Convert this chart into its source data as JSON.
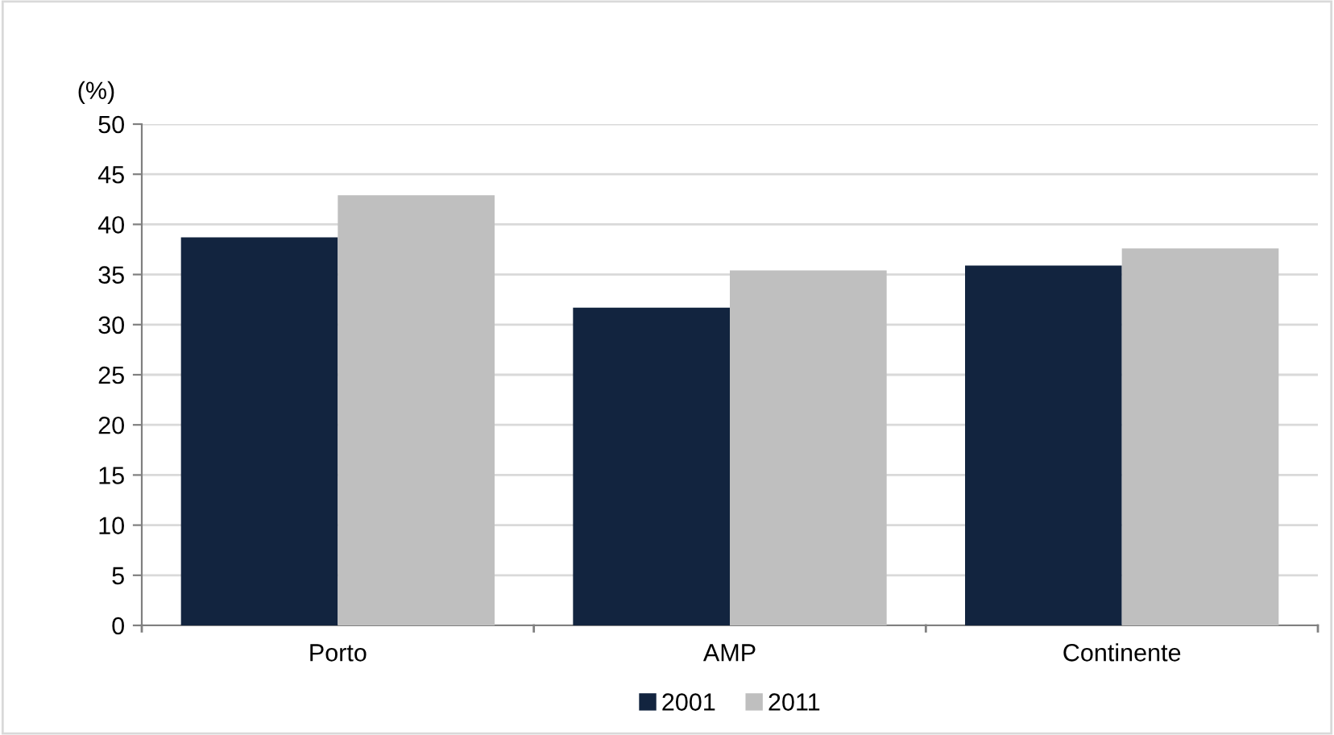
{
  "chart_data": {
    "type": "bar",
    "ylabel": "(%)",
    "categories": [
      "Porto",
      "AMP",
      "Continente"
    ],
    "series": [
      {
        "name": "2001",
        "color": "#12243f",
        "values": [
          38.7,
          31.7,
          35.9
        ]
      },
      {
        "name": "2011",
        "color": "#bfbfbf",
        "values": [
          42.9,
          35.4,
          37.6
        ]
      }
    ],
    "ylim": [
      0,
      50
    ],
    "yticks": [
      0,
      5,
      10,
      15,
      20,
      25,
      30,
      35,
      40,
      45,
      50
    ],
    "grid": "y",
    "legend": "bottom"
  }
}
